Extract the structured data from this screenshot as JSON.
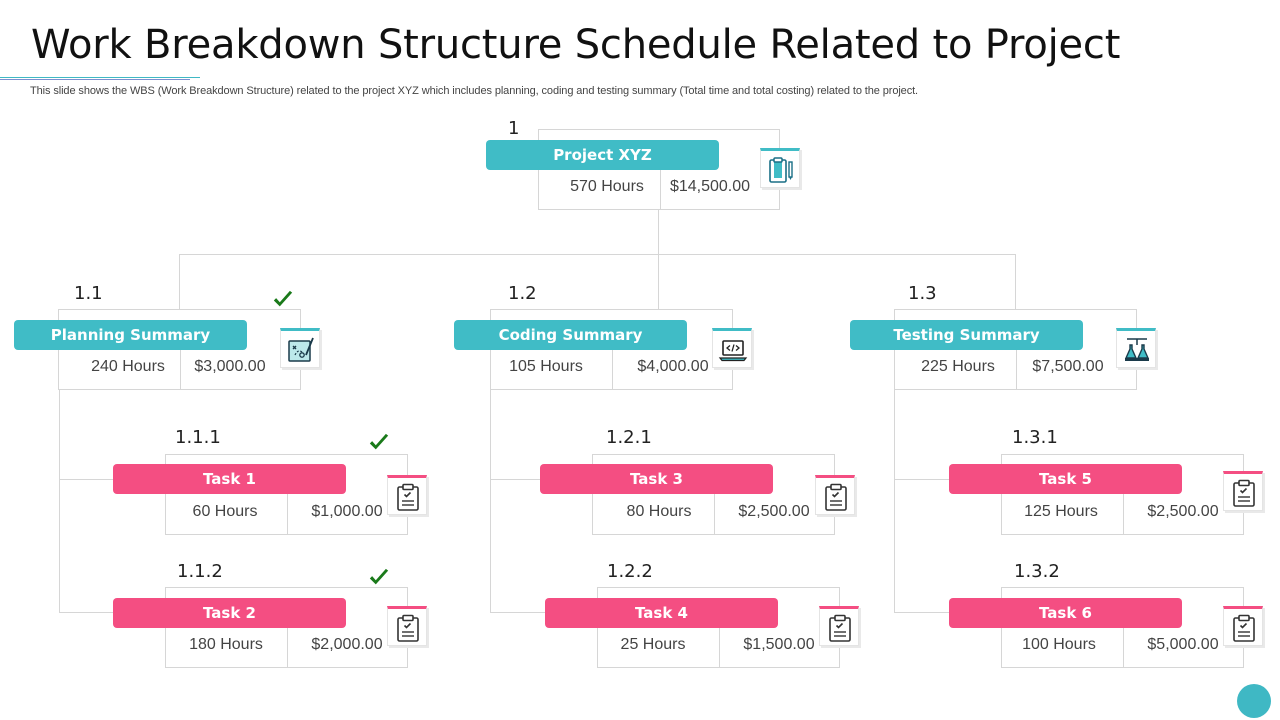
{
  "title": "Work Breakdown Structure Schedule Related to Project",
  "subtitle": "This slide shows the WBS (Work Breakdown Structure) related to the project XYZ  which includes planning, coding and testing summary (Total time and total costing) related to the project.",
  "colors": {
    "teal": "#40bcc6",
    "pink": "#f44e82",
    "check": "#1a7a1a"
  },
  "root": {
    "num": "1",
    "label": "Project XYZ",
    "hours": "570 Hours",
    "cost": "$14,500.00",
    "icon": "clipboard-pencil-icon"
  },
  "summaries": [
    {
      "num": "1.1",
      "label": "Planning Summary",
      "hours": "240 Hours",
      "cost": "$3,000.00",
      "icon": "strategy-board-icon",
      "checked": true,
      "tasks": [
        {
          "num": "1.1.1",
          "label": "Task 1",
          "hours": "60 Hours",
          "cost": "$1,000.00",
          "icon": "checklist-icon",
          "checked": true
        },
        {
          "num": "1.1.2",
          "label": "Task 2",
          "hours": "180 Hours",
          "cost": "$2,000.00",
          "icon": "checklist-icon",
          "checked": true
        }
      ]
    },
    {
      "num": "1.2",
      "label": "Coding Summary",
      "hours": "105 Hours",
      "cost": "$4,000.00",
      "icon": "laptop-code-icon",
      "checked": false,
      "tasks": [
        {
          "num": "1.2.1",
          "label": "Task 3",
          "hours": "80 Hours",
          "cost": "$2,500.00",
          "icon": "checklist-icon",
          "checked": false
        },
        {
          "num": "1.2.2",
          "label": "Task 4",
          "hours": "25 Hours",
          "cost": "$1,500.00",
          "icon": "checklist-icon",
          "checked": false
        }
      ]
    },
    {
      "num": "1.3",
      "label": "Testing Summary",
      "hours": "225 Hours",
      "cost": "$7,500.00",
      "icon": "lab-flask-icon",
      "checked": false,
      "tasks": [
        {
          "num": "1.3.1",
          "label": "Task 5",
          "hours": "125 Hours",
          "cost": "$2,500.00",
          "icon": "checklist-icon",
          "checked": false
        },
        {
          "num": "1.3.2",
          "label": "Task 6",
          "hours": "100 Hours",
          "cost": "$5,000.00",
          "icon": "checklist-icon",
          "checked": false
        }
      ]
    }
  ]
}
